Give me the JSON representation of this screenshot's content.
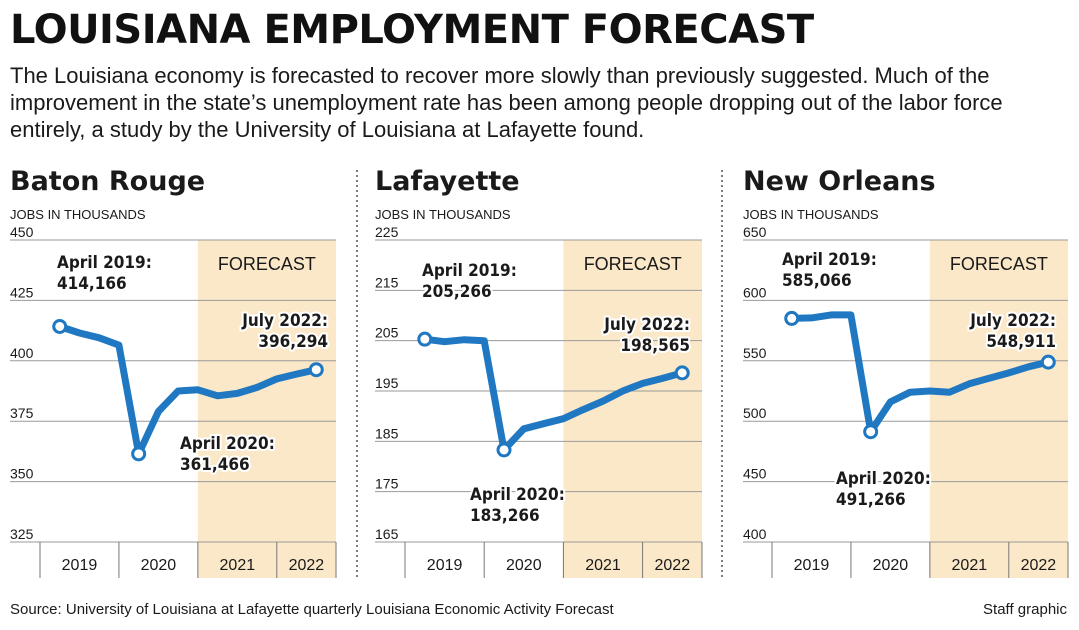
{
  "header": {
    "title": "LOUISIANA EMPLOYMENT FORECAST",
    "subtitle": "The Louisiana economy is forecasted to recover more slowly than previously suggested. Much of the improvement in the state’s unemployment rate has been among people dropping out of the labor force entirely, a study by the University of Louisiana at Lafayette found."
  },
  "footer": {
    "source": "Source: University of Louisiana at Lafayette quarterly Louisiana Economic Activity Forecast",
    "credit": "Staff graphic"
  },
  "colors": {
    "line": "#1f78c1",
    "forecast_band": "#fbe8c8",
    "grid": "#9a9a9a",
    "text": "#1a1a1a"
  },
  "chart_data": [
    {
      "type": "line",
      "title": "Baton Rouge",
      "ylabel": "JOBS IN THOUSANDS",
      "ylim": [
        325,
        450
      ],
      "yticks": [
        325,
        350,
        375,
        400,
        425,
        450
      ],
      "xlim": [
        2019.0,
        2022.75
      ],
      "year_labels": [
        "2019",
        "2020",
        "2021",
        "2022"
      ],
      "forecast_label": "FORECAST",
      "forecast_start": 2021.0,
      "x": [
        2019.25,
        2019.5,
        2019.75,
        2020.0,
        2020.25,
        2020.5,
        2020.75,
        2021.0,
        2021.25,
        2021.5,
        2021.75,
        2022.0,
        2022.25,
        2022.5
      ],
      "y": [
        414.2,
        411.5,
        409.5,
        406.5,
        361.5,
        379.0,
        387.5,
        388.0,
        385.5,
        386.5,
        389.0,
        392.5,
        394.5,
        396.3
      ],
      "annotations": [
        {
          "lines": [
            "April 2019:",
            "414,166"
          ],
          "x": 2019.25,
          "y": 414.2
        },
        {
          "lines": [
            "April 2020:",
            "361,466"
          ],
          "x": 2020.25,
          "y": 361.5
        },
        {
          "lines": [
            "July 2022:",
            "396,294"
          ],
          "x": 2022.5,
          "y": 396.3
        }
      ]
    },
    {
      "type": "line",
      "title": "Lafayette",
      "ylabel": "JOBS IN THOUSANDS",
      "ylim": [
        165,
        225
      ],
      "yticks": [
        165,
        175,
        185,
        195,
        205,
        215,
        225
      ],
      "xlim": [
        2019.0,
        2022.75
      ],
      "year_labels": [
        "2019",
        "2020",
        "2021",
        "2022"
      ],
      "forecast_label": "FORECAST",
      "forecast_start": 2021.0,
      "x": [
        2019.25,
        2019.5,
        2019.75,
        2020.0,
        2020.25,
        2020.5,
        2020.75,
        2021.0,
        2021.25,
        2021.5,
        2021.75,
        2022.0,
        2022.25,
        2022.5
      ],
      "y": [
        205.3,
        204.8,
        205.2,
        205.0,
        183.3,
        187.5,
        188.5,
        189.5,
        191.3,
        193.0,
        195.0,
        196.5,
        197.5,
        198.6
      ],
      "annotations": [
        {
          "lines": [
            "April 2019:",
            "205,266"
          ],
          "x": 2019.25,
          "y": 205.3
        },
        {
          "lines": [
            "April 2020:",
            "183,266"
          ],
          "x": 2020.25,
          "y": 183.3
        },
        {
          "lines": [
            "July 2022:",
            "198,565"
          ],
          "x": 2022.5,
          "y": 198.6
        }
      ]
    },
    {
      "type": "line",
      "title": "New Orleans",
      "ylabel": "JOBS IN THOUSANDS",
      "ylim": [
        400,
        650
      ],
      "yticks": [
        400,
        450,
        500,
        550,
        600,
        650
      ],
      "xlim": [
        2019.0,
        2022.75
      ],
      "year_labels": [
        "2019",
        "2020",
        "2021",
        "2022"
      ],
      "forecast_label": "FORECAST",
      "forecast_start": 2021.0,
      "x": [
        2019.25,
        2019.5,
        2019.75,
        2020.0,
        2020.25,
        2020.5,
        2020.75,
        2021.0,
        2021.25,
        2021.5,
        2021.75,
        2022.0,
        2022.25,
        2022.5
      ],
      "y": [
        585.1,
        585.5,
        588.0,
        588.0,
        491.3,
        516.0,
        524.0,
        525.0,
        524.0,
        531.0,
        535.5,
        540.0,
        545.0,
        548.9
      ],
      "annotations": [
        {
          "lines": [
            "April 2019:",
            "585,066"
          ],
          "x": 2019.25,
          "y": 585.1
        },
        {
          "lines": [
            "April 2020:",
            "491,266"
          ],
          "x": 2020.25,
          "y": 491.3
        },
        {
          "lines": [
            "July 2022:",
            "548,911"
          ],
          "x": 2022.5,
          "y": 548.9
        }
      ]
    }
  ]
}
